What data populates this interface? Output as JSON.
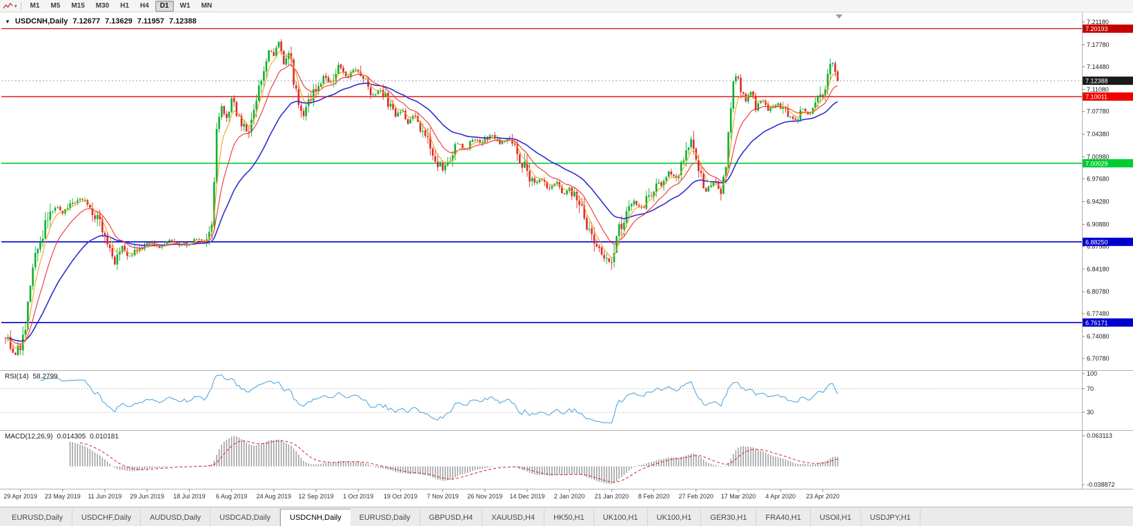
{
  "colors": {
    "up": "#0ab12f",
    "down": "#dd2a2a",
    "ma_fast": "#f5a11c",
    "ma_mid": "#f03030",
    "ma_slow": "#2d2dd0",
    "rsi_line": "#55a8dd",
    "macd_hist": "#9c9c9c",
    "macd_signal": "#d42020",
    "current_price_badge": "#1a1a1a",
    "axis_text": "#1c1c1c",
    "dotted_line": "#9a9a9a"
  },
  "toolbar": {
    "timeframes": [
      "M1",
      "M5",
      "M15",
      "M30",
      "H1",
      "H4",
      "D1",
      "W1",
      "MN"
    ],
    "active": "D1"
  },
  "chart": {
    "symbol": "USDCNH,Daily",
    "ohlc": {
      "open": "7.12677",
      "high": "7.13629",
      "low": "7.11957",
      "close": "7.12388"
    },
    "current_price": 7.12388,
    "current_price_label": "7.12388",
    "price_axis": {
      "min": 6.7078,
      "max": 7.2118,
      "labels": [
        "7.21180",
        "7.17780",
        "7.14480",
        "7.11080",
        "7.07780",
        "7.04380",
        "7.00980",
        "6.97680",
        "6.94280",
        "6.90880",
        "6.87580",
        "6.84180",
        "6.80780",
        "6.77480",
        "6.74080",
        "6.70780"
      ]
    },
    "hlines": [
      {
        "value": 7.20193,
        "label": "7.20193",
        "color": "#c40000",
        "width": 1.2
      },
      {
        "value": 7.10011,
        "label": "7.10011",
        "color": "#ee0000",
        "width": 1.4
      },
      {
        "value": 7.00029,
        "label": "7.00029",
        "color": "#00cb32",
        "width": 1.6
      },
      {
        "value": 6.8825,
        "label": "6.88250",
        "color": "#0000cd",
        "width": 1.6
      },
      {
        "value": 6.76171,
        "label": "6.76171",
        "color": "#0000cd",
        "width": 1.6
      }
    ],
    "date_axis": [
      "29 Apr 2019",
      "23 May 2019",
      "11 Jun 2019",
      "29 Jun 2019",
      "18 Jul 2019",
      "6 Aug 2019",
      "24 Aug 2019",
      "12 Sep 2019",
      "1 Oct 2019",
      "19 Oct 2019",
      "7 Nov 2019",
      "26 Nov 2019",
      "14 Dec 2019",
      "2 Jan 2020",
      "21 Jan 2020",
      "8 Feb 2020",
      "27 Feb 2020",
      "17 Mar 2020",
      "4 Apr 2020",
      "23 Apr 2020"
    ]
  },
  "indicators": {
    "rsi": {
      "name": "RSI(14)",
      "value": "58.2799",
      "levels": [
        70,
        30
      ],
      "axis_labels": [
        "100",
        "70",
        "30"
      ]
    },
    "macd": {
      "name": "MACD(12,26,9)",
      "main": "0.014305",
      "signal": "0.010181",
      "axis_max_label": "0.063113",
      "axis_min_label": "-0.038872",
      "axis_max": 0.063113,
      "axis_min": -0.038872
    }
  },
  "tabs": {
    "active_index": 4,
    "items": [
      "EURUSD,Daily",
      "USDCHF,Daily",
      "AUDUSD,Daily",
      "USDCAD,Daily",
      "USDCNH,Daily",
      "EURUSD,Daily",
      "GBPUSD,H4",
      "XAUUSD,H4",
      "HK50,H1",
      "UK100,H1",
      "UK100,H1",
      "GER30,H1",
      "FRA40,H1",
      "USOil,H1",
      "USDJPY,H1"
    ]
  },
  "chart_data": {
    "type": "candlestick",
    "symbol": "USDCNH",
    "timeframe": "Daily",
    "title": "USDCNH,Daily 7.12677 7.13629 7.11957 7.12388",
    "bars_total": 336,
    "visible_price_range": [
      6.7078,
      7.2118
    ],
    "last_bar": {
      "open": 7.12677,
      "high": 7.13629,
      "low": 7.11957,
      "close": 7.12388
    },
    "horizontal_levels": [
      7.20193,
      7.10011,
      7.00029,
      6.8825,
      6.76171
    ],
    "visible_dates": [
      "29 Apr 2019",
      "23 May 2019",
      "11 Jun 2019",
      "29 Jun 2019",
      "18 Jul 2019",
      "6 Aug 2019",
      "24 Aug 2019",
      "12 Sep 2019",
      "1 Oct 2019",
      "19 Oct 2019",
      "7 Nov 2019",
      "26 Nov 2019",
      "14 Dec 2019",
      "2 Jan 2020",
      "21 Jan 2020",
      "8 Feb 2020",
      "27 Feb 2020",
      "17 Mar 2020",
      "4 Apr 2020",
      "23 Apr 2020"
    ],
    "close_keyframes": [
      [
        0,
        6.745
      ],
      [
        2,
        6.728
      ],
      [
        4,
        6.714
      ],
      [
        6,
        6.728
      ],
      [
        8,
        6.748
      ],
      [
        10,
        6.82
      ],
      [
        13,
        6.875
      ],
      [
        16,
        6.908
      ],
      [
        20,
        6.935
      ],
      [
        23,
        6.926
      ],
      [
        27,
        6.938
      ],
      [
        31,
        6.946
      ],
      [
        35,
        6.93
      ],
      [
        38,
        6.912
      ],
      [
        41,
        6.872
      ],
      [
        44,
        6.849
      ],
      [
        47,
        6.876
      ],
      [
        50,
        6.858
      ],
      [
        54,
        6.872
      ],
      [
        58,
        6.881
      ],
      [
        62,
        6.876
      ],
      [
        66,
        6.886
      ],
      [
        70,
        6.876
      ],
      [
        74,
        6.881
      ],
      [
        78,
        6.886
      ],
      [
        81,
        6.882
      ],
      [
        83,
        6.904
      ],
      [
        85,
        7.048
      ],
      [
        87,
        7.082
      ],
      [
        89,
        7.062
      ],
      [
        91,
        7.098
      ],
      [
        93,
        7.078
      ],
      [
        95,
        7.056
      ],
      [
        98,
        7.046
      ],
      [
        101,
        7.09
      ],
      [
        104,
        7.148
      ],
      [
        106,
        7.168
      ],
      [
        108,
        7.158
      ],
      [
        110,
        7.183
      ],
      [
        112,
        7.15
      ],
      [
        114,
        7.168
      ],
      [
        116,
        7.128
      ],
      [
        118,
        7.098
      ],
      [
        120,
        7.068
      ],
      [
        122,
        7.09
      ],
      [
        125,
        7.114
      ],
      [
        128,
        7.13
      ],
      [
        131,
        7.118
      ],
      [
        134,
        7.146
      ],
      [
        137,
        7.128
      ],
      [
        140,
        7.142
      ],
      [
        142,
        7.134
      ],
      [
        145,
        7.12
      ],
      [
        148,
        7.1
      ],
      [
        151,
        7.113
      ],
      [
        154,
        7.09
      ],
      [
        157,
        7.072
      ],
      [
        159,
        7.08
      ],
      [
        162,
        7.062
      ],
      [
        165,
        7.072
      ],
      [
        168,
        7.05
      ],
      [
        171,
        7.032
      ],
      [
        174,
        7.002
      ],
      [
        176,
        6.992
      ],
      [
        179,
        7.01
      ],
      [
        182,
        7.03
      ],
      [
        185,
        7.022
      ],
      [
        188,
        7.036
      ],
      [
        191,
        7.03
      ],
      [
        193,
        7.036
      ],
      [
        196,
        7.042
      ],
      [
        199,
        7.03
      ],
      [
        202,
        7.036
      ],
      [
        205,
        7.02
      ],
      [
        208,
        7.002
      ],
      [
        210,
        6.986
      ],
      [
        213,
        6.97
      ],
      [
        216,
        6.976
      ],
      [
        219,
        6.962
      ],
      [
        222,
        6.97
      ],
      [
        225,
        6.956
      ],
      [
        227,
        6.962
      ],
      [
        230,
        6.944
      ],
      [
        233,
        6.92
      ],
      [
        236,
        6.892
      ],
      [
        239,
        6.872
      ],
      [
        242,
        6.858
      ],
      [
        244,
        6.848
      ],
      [
        247,
        6.9
      ],
      [
        250,
        6.928
      ],
      [
        253,
        6.944
      ],
      [
        256,
        6.932
      ],
      [
        259,
        6.95
      ],
      [
        261,
        6.962
      ],
      [
        264,
        6.972
      ],
      [
        267,
        6.988
      ],
      [
        270,
        6.976
      ],
      [
        273,
        7.002
      ],
      [
        276,
        7.034
      ],
      [
        279,
        6.992
      ],
      [
        282,
        6.962
      ],
      [
        285,
        6.972
      ],
      [
        288,
        6.956
      ],
      [
        290,
        7.0
      ],
      [
        292,
        7.09
      ],
      [
        294,
        7.138
      ],
      [
        296,
        7.112
      ],
      [
        298,
        7.092
      ],
      [
        300,
        7.11
      ],
      [
        302,
        7.082
      ],
      [
        304,
        7.096
      ],
      [
        307,
        7.08
      ],
      [
        310,
        7.09
      ],
      [
        312,
        7.086
      ],
      [
        315,
        7.072
      ],
      [
        318,
        7.066
      ],
      [
        321,
        7.08
      ],
      [
        324,
        7.072
      ],
      [
        327,
        7.094
      ],
      [
        329,
        7.102
      ],
      [
        331,
        7.132
      ],
      [
        333,
        7.154
      ],
      [
        335,
        7.12388
      ]
    ],
    "subpanels": [
      {
        "name": "RSI",
        "params": "14",
        "last_value": 58.2799,
        "levels": [
          70,
          30
        ],
        "axis_labels": [
          "100",
          "70",
          "30"
        ]
      },
      {
        "name": "MACD",
        "params": "12,26,9",
        "last_main": 0.014305,
        "last_signal": 0.010181,
        "panel_max": 0.063113,
        "panel_min": -0.038872
      }
    ]
  }
}
